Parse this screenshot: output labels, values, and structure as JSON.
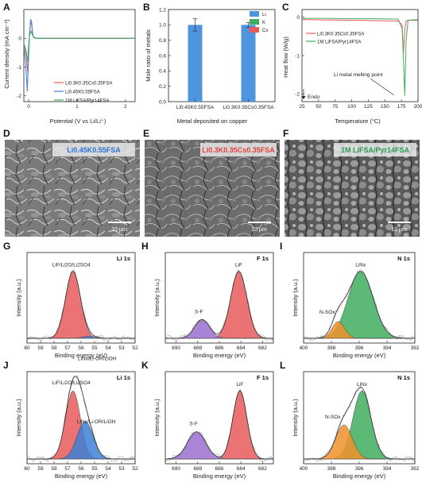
{
  "colors": {
    "red": "#e85a5a",
    "blue": "#3d7fd6",
    "green": "#3fae5e",
    "purple": "#9a6fd0",
    "orange": "#f0902a",
    "bar_blue": "#4f95dd",
    "label_blue": "#2a6fd4",
    "label_red": "#e0413a",
    "label_green": "#2f9c52"
  },
  "panels": {
    "A": {
      "letter": "A",
      "ylabel": "Current density (mA cm⁻²)",
      "xlabel": "Potential (V vs Li/Li⁺)",
      "legend": [
        "Li0.3K0.35Cs0.35FSA",
        "Li0.45K0.55FSA",
        "1M LiFSA/Pyr14FSA"
      ]
    },
    "B": {
      "letter": "B",
      "ylabel": "Mole ratio of metals",
      "xlabel": "Metal deposited on copper",
      "legend": [
        "Li",
        "K",
        "Cs"
      ]
    },
    "C": {
      "letter": "C",
      "ylabel": "Heat flow (W/g)",
      "xlabel": "Temperature (°C)",
      "legend": [
        "Li0.3K0.35Cs0.35FSA",
        "1M LiFSA/Pyr14FSA"
      ],
      "annotation": "Li metal melting point",
      "endo": "Endo"
    },
    "D": {
      "letter": "D",
      "label": "Li0.45K0.55FSA",
      "scale": "10 μm"
    },
    "E": {
      "letter": "E",
      "label": "Li0.3K0.35Cs0.35FSA",
      "scale": "10 μm"
    },
    "F": {
      "letter": "F",
      "label": "1M LiFSA/Pyr14FSA",
      "scale": "10 μm"
    },
    "G": {
      "letter": "G",
      "title": "Li 1s",
      "peaks": [
        "LiF/Li2O/Li2SO4",
        "LiNx/Li-OR/LiOH"
      ]
    },
    "H": {
      "letter": "H",
      "title": "F 1s",
      "peaks": [
        "LiF",
        "S-F"
      ]
    },
    "I": {
      "letter": "I",
      "title": "N 1s",
      "peaks": [
        "LiNx",
        "N-SOx"
      ]
    },
    "J": {
      "letter": "J",
      "title": "Li 1s",
      "peaks": [
        "LiF/Li2O/Li2SO4",
        "LiNx/Li-OR/LiOH"
      ]
    },
    "K": {
      "letter": "K",
      "title": "F 1s",
      "peaks": [
        "LiF",
        "S-F"
      ]
    },
    "L": {
      "letter": "L",
      "title": "N 1s",
      "peaks": [
        "LiNx",
        "N-SOx"
      ]
    },
    "xps": {
      "ylabel": "Intensity (a.u.)",
      "xlabel": "Binding energy (eV)"
    }
  },
  "chart_data": [
    {
      "panel": "A",
      "type": "line",
      "xlabel": "Potential (V vs Li/Li⁺)",
      "ylabel": "Current density (mA cm⁻²)",
      "xlim": [
        -0.1,
        2.2
      ],
      "ylim": [
        -2.2,
        1.0
      ],
      "xticks": [
        0,
        1,
        2
      ],
      "yticks": [
        -2,
        -1,
        0
      ],
      "series": [
        {
          "name": "Li0.3K0.35Cs0.35FSA",
          "x": [
            -0.1,
            -0.05,
            -0.02,
            0.0,
            0.02,
            0.04,
            0.06,
            0.08,
            0.1,
            0.15,
            0.3,
            1.0,
            2.2
          ],
          "y": [
            -0.2,
            -0.6,
            -1.2,
            -0.3,
            0.2,
            0.55,
            0.5,
            0.15,
            0.03,
            0.0,
            0.0,
            0.0,
            0.0
          ]
        },
        {
          "name": "Li0.45K0.55FSA",
          "x": [
            -0.1,
            -0.06,
            -0.03,
            0.0,
            0.02,
            0.04,
            0.06,
            0.08,
            0.1,
            0.15,
            0.3,
            1.0,
            2.2
          ],
          "y": [
            -0.3,
            -0.9,
            -1.85,
            -0.6,
            0.2,
            0.65,
            0.6,
            0.2,
            0.05,
            0.0,
            0.0,
            0.0,
            0.0
          ]
        },
        {
          "name": "1M LiFSA/Pyr14FSA",
          "x": [
            -0.1,
            -0.05,
            -0.02,
            0.0,
            0.02,
            0.05,
            0.08,
            0.12,
            0.2,
            1.0,
            2.2
          ],
          "y": [
            -0.15,
            -0.45,
            -0.8,
            -0.2,
            0.1,
            0.25,
            0.1,
            0.02,
            0.0,
            0.0,
            0.0
          ]
        }
      ]
    },
    {
      "panel": "B",
      "type": "bar",
      "xlabel": "Metal deposited on copper",
      "ylabel": "Mole ratio of metals",
      "categories": [
        "Li0.45K0.55FSA",
        "Li0.3K0.35Cs0.35FSA"
      ],
      "ylim": [
        0.0,
        1.2
      ],
      "yticks": [
        0.0,
        0.2,
        0.4,
        0.6,
        0.8,
        1.0,
        1.2
      ],
      "series": [
        {
          "name": "Li",
          "values": [
            1.0,
            1.0
          ],
          "err": [
            0.08,
            0.03
          ]
        },
        {
          "name": "K",
          "values": [
            0.0,
            0.0
          ]
        },
        {
          "name": "Cs",
          "values": [
            0.0,
            0.0
          ]
        }
      ]
    },
    {
      "panel": "C",
      "type": "line",
      "xlabel": "Temperature (°C)",
      "ylabel": "Heat flow (W/g)",
      "xlim": [
        25,
        200
      ],
      "ylim": [
        -2.2,
        0.2
      ],
      "xticks": [
        25,
        50,
        75,
        100,
        125,
        150,
        175,
        200
      ],
      "yticks": [
        -2,
        -1,
        0
      ],
      "series": [
        {
          "name": "Li0.3K0.35Cs0.35FSA",
          "x": [
            25,
            60,
            100,
            140,
            170,
            176,
            178,
            180,
            182,
            185,
            200
          ],
          "y": [
            -0.06,
            -0.07,
            -0.08,
            -0.09,
            -0.1,
            -0.2,
            -0.95,
            -0.35,
            -0.1,
            -0.08,
            -0.08
          ]
        },
        {
          "name": "1M LiFSA/Pyr14FSA",
          "x": [
            25,
            60,
            100,
            140,
            170,
            176,
            178,
            180,
            182,
            185,
            200
          ],
          "y": [
            -0.03,
            -0.03,
            -0.04,
            -0.04,
            -0.05,
            -0.3,
            -1.05,
            -2.05,
            -0.6,
            -0.08,
            -0.06
          ]
        }
      ]
    },
    {
      "panel": "G",
      "type": "line",
      "xlim": [
        60,
        52
      ],
      "xticks": [
        60,
        59,
        58,
        57,
        56,
        55,
        54,
        53,
        52
      ],
      "series": [
        {
          "name": "LiF/Li2O/Li2SO4",
          "center": 56.6,
          "amp": 1.0,
          "width": 0.55
        },
        {
          "name": "LiNx/Li-OR/LiOH",
          "center": 55.4,
          "amp": 0.03,
          "width": 0.5
        }
      ]
    },
    {
      "panel": "H",
      "type": "line",
      "xlim": [
        691,
        681
      ],
      "xticks": [
        690,
        688,
        686,
        684,
        682
      ],
      "series": [
        {
          "name": "LiF",
          "center": 684.2,
          "amp": 1.0,
          "width": 0.75
        },
        {
          "name": "S-F",
          "center": 687.6,
          "amp": 0.28,
          "width": 0.7
        }
      ]
    },
    {
      "panel": "I",
      "type": "line",
      "xlim": [
        400,
        392
      ],
      "xticks": [
        400,
        398,
        396,
        394,
        392
      ],
      "series": [
        {
          "name": "LiNx",
          "center": 395.9,
          "amp": 1.0,
          "width": 0.9
        },
        {
          "name": "N-SOx",
          "center": 397.5,
          "amp": 0.25,
          "width": 0.45
        }
      ]
    },
    {
      "panel": "J",
      "type": "line",
      "xlim": [
        60,
        52
      ],
      "xticks": [
        60,
        59,
        58,
        57,
        56,
        55,
        54,
        53,
        52
      ],
      "series": [
        {
          "name": "LiF/Li2O/Li2SO4",
          "center": 56.6,
          "amp": 1.0,
          "width": 0.55
        },
        {
          "name": "LiNx/Li-OR/LiOH",
          "center": 55.7,
          "amp": 0.55,
          "width": 0.6
        }
      ]
    },
    {
      "panel": "K",
      "type": "line",
      "xlim": [
        691,
        681
      ],
      "xticks": [
        690,
        688,
        686,
        684,
        682
      ],
      "series": [
        {
          "name": "LiF",
          "center": 684.1,
          "amp": 1.0,
          "width": 0.65
        },
        {
          "name": "S-F",
          "center": 688.1,
          "amp": 0.4,
          "width": 0.85
        }
      ]
    },
    {
      "panel": "L",
      "type": "line",
      "xlim": [
        400,
        392
      ],
      "xticks": [
        400,
        398,
        396,
        394,
        392
      ],
      "series": [
        {
          "name": "LiNx",
          "center": 395.8,
          "amp": 1.0,
          "width": 0.65
        },
        {
          "name": "N-SOx",
          "center": 397.1,
          "amp": 0.5,
          "width": 0.6
        }
      ]
    }
  ]
}
